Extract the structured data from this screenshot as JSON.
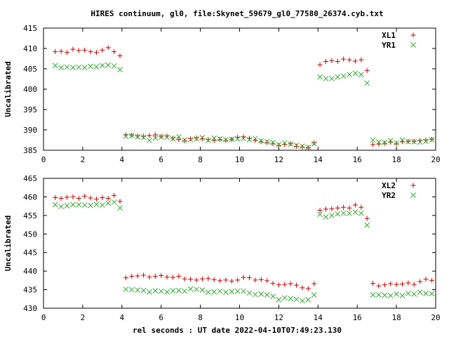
{
  "title": "HIRES continuum, gl0, file:Skynet_59679_gl0_77580_26374.cyb.txt",
  "xlabel": "rel seconds : UT date 2022-04-10T07:49:23.130",
  "chart_data": [
    {
      "type": "scatter",
      "ylabel": "Uncalibrated",
      "xlim": [
        0,
        20
      ],
      "ylim": [
        385,
        415
      ],
      "xticks": [
        0,
        2,
        4,
        6,
        8,
        10,
        12,
        14,
        16,
        18,
        20
      ],
      "yticks": [
        385,
        390,
        395,
        400,
        405,
        410,
        415
      ],
      "legend_position": "top-right",
      "colors": {
        "XL1": "#cc0000",
        "YR1": "#33aa33"
      },
      "series": [
        {
          "name": "XL1",
          "marker": "plus",
          "x": [
            0.6,
            0.9,
            1.2,
            1.5,
            1.8,
            2.1,
            2.4,
            2.7,
            3.0,
            3.3,
            3.6,
            3.9,
            4.2,
            4.5,
            4.8,
            5.1,
            5.4,
            5.7,
            6.0,
            6.3,
            6.6,
            6.9,
            7.2,
            7.5,
            7.8,
            8.1,
            8.4,
            8.7,
            9.0,
            9.3,
            9.6,
            9.9,
            10.2,
            10.5,
            10.8,
            11.1,
            11.4,
            11.7,
            12.0,
            12.3,
            12.6,
            12.9,
            13.2,
            13.5,
            13.8,
            14.1,
            14.4,
            14.7,
            15.0,
            15.3,
            15.6,
            15.9,
            16.2,
            16.5,
            16.8,
            17.1,
            17.4,
            17.7,
            18.0,
            18.3,
            18.6,
            18.9,
            19.2,
            19.5,
            19.8
          ],
          "y": [
            409.2,
            409.3,
            409.0,
            409.8,
            409.5,
            409.6,
            409.2,
            409.0,
            409.6,
            410.2,
            409.2,
            408.2,
            388.8,
            388.7,
            388.5,
            388.4,
            388.6,
            388.8,
            388.4,
            388.5,
            388.0,
            387.6,
            387.3,
            387.8,
            388.0,
            387.8,
            387.6,
            387.4,
            387.6,
            387.4,
            387.7,
            388.2,
            388.3,
            387.9,
            387.4,
            387.1,
            386.9,
            386.6,
            386.2,
            386.4,
            386.6,
            386.0,
            385.8,
            385.6,
            386.8,
            406.0,
            406.8,
            407.0,
            406.8,
            407.4,
            407.2,
            406.9,
            407.2,
            404.6,
            386.4,
            386.5,
            386.7,
            387.0,
            386.6,
            387.1,
            387.2,
            387.2,
            387.4,
            387.5,
            387.7
          ]
        },
        {
          "name": "YR1",
          "marker": "cross",
          "x": [
            0.6,
            0.9,
            1.2,
            1.5,
            1.8,
            2.1,
            2.4,
            2.7,
            3.0,
            3.3,
            3.6,
            3.9,
            4.2,
            4.5,
            4.8,
            5.1,
            5.4,
            5.7,
            6.0,
            6.3,
            6.6,
            6.9,
            7.2,
            7.5,
            7.8,
            8.1,
            8.4,
            8.7,
            9.0,
            9.3,
            9.6,
            9.9,
            10.2,
            10.5,
            10.8,
            11.1,
            11.4,
            11.7,
            12.0,
            12.3,
            12.6,
            12.9,
            13.2,
            13.5,
            13.8,
            14.1,
            14.4,
            14.7,
            15.0,
            15.3,
            15.6,
            15.9,
            16.2,
            16.5,
            16.8,
            17.1,
            17.4,
            17.7,
            18.0,
            18.3,
            18.6,
            18.9,
            19.2,
            19.5,
            19.8
          ],
          "y": [
            405.8,
            405.3,
            405.4,
            405.3,
            405.4,
            405.3,
            405.6,
            405.5,
            405.8,
            405.9,
            405.7,
            404.8,
            388.4,
            388.6,
            388.3,
            388.2,
            387.4,
            388.0,
            388.3,
            388.2,
            387.8,
            388.3,
            387.5,
            387.6,
            387.8,
            388.1,
            387.4,
            388.0,
            387.8,
            387.6,
            387.7,
            387.8,
            387.9,
            387.6,
            387.9,
            387.3,
            387.1,
            386.9,
            386.4,
            386.8,
            386.5,
            386.2,
            386.0,
            385.7,
            386.6,
            403.0,
            402.6,
            402.6,
            403.0,
            403.2,
            403.6,
            403.9,
            403.6,
            401.5,
            387.5,
            387.0,
            386.9,
            387.4,
            386.8,
            387.5,
            387.1,
            387.1,
            387.0,
            387.2,
            387.6
          ]
        }
      ]
    },
    {
      "type": "scatter",
      "ylabel": "Uncalibrated",
      "xlim": [
        0,
        20
      ],
      "ylim": [
        430,
        465
      ],
      "xticks": [
        0,
        2,
        4,
        6,
        8,
        10,
        12,
        14,
        16,
        18,
        20
      ],
      "yticks": [
        430,
        435,
        440,
        445,
        450,
        455,
        460,
        465
      ],
      "legend_position": "top-right",
      "colors": {
        "XL2": "#cc0000",
        "YR2": "#33aa33"
      },
      "series": [
        {
          "name": "XL2",
          "marker": "plus",
          "x": [
            0.6,
            0.9,
            1.2,
            1.5,
            1.8,
            2.1,
            2.4,
            2.7,
            3.0,
            3.3,
            3.6,
            3.9,
            4.2,
            4.5,
            4.8,
            5.1,
            5.4,
            5.7,
            6.0,
            6.3,
            6.6,
            6.9,
            7.2,
            7.5,
            7.8,
            8.1,
            8.4,
            8.7,
            9.0,
            9.3,
            9.6,
            9.9,
            10.2,
            10.5,
            10.8,
            11.1,
            11.4,
            11.7,
            12.0,
            12.3,
            12.6,
            12.9,
            13.2,
            13.5,
            13.8,
            14.1,
            14.4,
            14.7,
            15.0,
            15.3,
            15.6,
            15.9,
            16.2,
            16.5,
            16.8,
            17.1,
            17.4,
            17.7,
            18.0,
            18.3,
            18.6,
            18.9,
            19.2,
            19.5,
            19.8
          ],
          "y": [
            459.8,
            459.6,
            459.9,
            460.0,
            459.6,
            460.2,
            459.7,
            459.4,
            459.8,
            459.6,
            460.4,
            458.8,
            438.2,
            438.6,
            438.7,
            438.9,
            438.4,
            438.6,
            438.8,
            438.4,
            438.3,
            438.6,
            437.9,
            437.8,
            437.6,
            437.9,
            438.0,
            437.7,
            437.4,
            437.6,
            437.3,
            437.6,
            438.3,
            438.2,
            437.6,
            437.7,
            437.4,
            436.7,
            436.3,
            436.4,
            436.6,
            436.2,
            435.5,
            435.3,
            436.6,
            456.4,
            456.7,
            456.8,
            457.0,
            457.2,
            457.0,
            457.8,
            457.2,
            454.2,
            436.7,
            436.0,
            436.3,
            436.6,
            436.4,
            436.5,
            436.8,
            436.4,
            437.2,
            437.8,
            437.5
          ]
        },
        {
          "name": "YR2",
          "marker": "cross",
          "x": [
            0.6,
            0.9,
            1.2,
            1.5,
            1.8,
            2.1,
            2.4,
            2.7,
            3.0,
            3.3,
            3.6,
            3.9,
            4.2,
            4.5,
            4.8,
            5.1,
            5.4,
            5.7,
            6.0,
            6.3,
            6.6,
            6.9,
            7.2,
            7.5,
            7.8,
            8.1,
            8.4,
            8.7,
            9.0,
            9.3,
            9.6,
            9.9,
            10.2,
            10.5,
            10.8,
            11.1,
            11.4,
            11.7,
            12.0,
            12.3,
            12.6,
            12.9,
            13.2,
            13.5,
            13.8,
            14.1,
            14.4,
            14.7,
            15.0,
            15.3,
            15.6,
            15.9,
            16.2,
            16.5,
            16.8,
            17.1,
            17.4,
            17.7,
            18.0,
            18.3,
            18.6,
            18.9,
            19.2,
            19.5,
            19.8
          ],
          "y": [
            457.9,
            457.4,
            457.6,
            457.9,
            457.9,
            457.8,
            457.7,
            458.0,
            457.8,
            458.3,
            458.6,
            457.0,
            435.1,
            435.0,
            434.9,
            434.8,
            434.4,
            434.7,
            434.6,
            434.4,
            434.7,
            434.8,
            434.6,
            435.2,
            435.1,
            434.9,
            434.3,
            434.4,
            434.6,
            434.3,
            434.5,
            434.6,
            434.6,
            434.1,
            433.7,
            433.8,
            433.6,
            433.2,
            432.3,
            432.8,
            432.6,
            432.4,
            432.0,
            432.3,
            433.6,
            455.3,
            454.6,
            455.0,
            455.4,
            455.6,
            455.6,
            455.9,
            455.6,
            452.4,
            433.6,
            433.6,
            433.5,
            433.4,
            433.8,
            433.4,
            434.0,
            433.8,
            434.3,
            434.0,
            433.9
          ]
        }
      ]
    }
  ]
}
